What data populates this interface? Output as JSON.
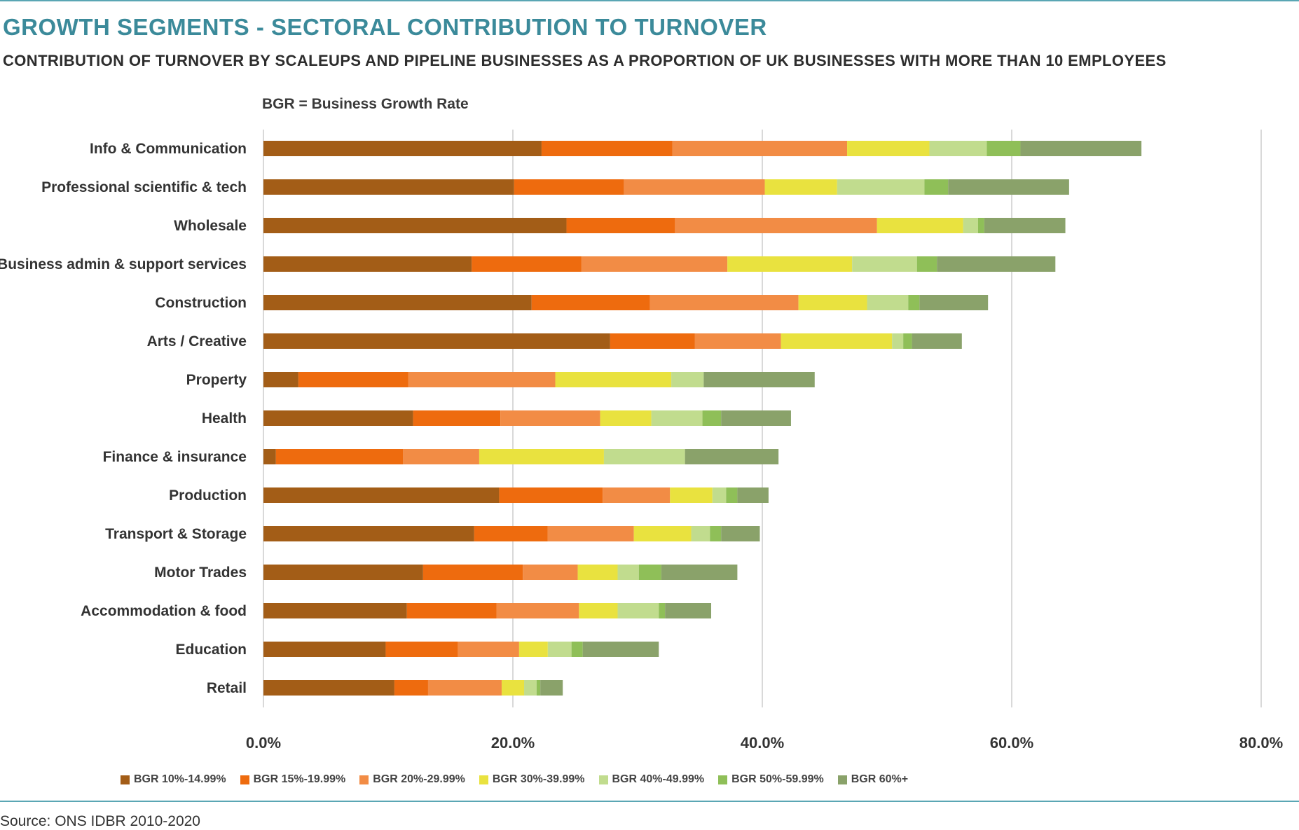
{
  "header": {
    "title": "GROWTH SEGMENTS - SECTORAL CONTRIBUTION TO TURNOVER",
    "subtitle": "CONTRIBUTION OF TURNOVER BY SCALEUPS AND PIPELINE BUSINESSES AS A PROPORTION OF UK BUSINESSES WITH MORE THAN 10 EMPLOYEES",
    "note": "BGR = Business Growth Rate"
  },
  "source": "Source: ONS IDBR 2010-2020",
  "chart_data": {
    "type": "bar",
    "orientation": "horizontal",
    "stacked": true,
    "xlim": [
      0,
      80
    ],
    "ticks": [
      "0.0%",
      "20.0%",
      "40.0%",
      "60.0%",
      "80.0%"
    ],
    "tick_values": [
      0,
      20,
      40,
      60,
      80
    ],
    "grid": true,
    "legend_position": "bottom",
    "categories": [
      "Info & Communication",
      "Professional scientific & tech",
      "Wholesale",
      "Business admin & support services",
      "Construction",
      "Arts / Creative",
      "Property",
      "Health",
      "Finance & insurance",
      "Production",
      "Transport & Storage",
      "Motor Trades",
      "Accommodation & food",
      "Education",
      "Retail"
    ],
    "series": [
      {
        "name": "BGR 10%-14.99%",
        "color": "#a35d17",
        "values": [
          22.3,
          20.1,
          24.3,
          16.7,
          21.5,
          27.8,
          2.8,
          12.0,
          1.0,
          18.9,
          16.9,
          12.8,
          11.5,
          9.8,
          10.5
        ]
      },
      {
        "name": "BGR 15%-19.99%",
        "color": "#ee6b0e",
        "values": [
          10.5,
          8.8,
          8.7,
          8.8,
          9.5,
          6.8,
          8.8,
          7.0,
          10.2,
          8.3,
          5.9,
          8.0,
          7.2,
          5.8,
          2.7
        ]
      },
      {
        "name": "BGR 20%-29.99%",
        "color": "#f28c45",
        "values": [
          14.0,
          11.3,
          16.2,
          11.7,
          11.9,
          6.9,
          11.8,
          8.0,
          6.1,
          5.4,
          6.9,
          4.4,
          6.6,
          4.9,
          5.9
        ]
      },
      {
        "name": "BGR 30%-39.99%",
        "color": "#e9e23f",
        "values": [
          6.6,
          5.8,
          6.9,
          10.0,
          5.5,
          8.9,
          9.3,
          4.1,
          10.0,
          3.4,
          4.6,
          3.2,
          3.1,
          2.3,
          1.8
        ]
      },
      {
        "name": "BGR 40%-49.99%",
        "color": "#c1dc8e",
        "values": [
          4.6,
          7.0,
          1.2,
          5.2,
          3.3,
          0.9,
          2.6,
          4.1,
          6.5,
          1.1,
          1.5,
          1.7,
          3.3,
          1.9,
          1.0
        ]
      },
      {
        "name": "BGR 50%-59.99%",
        "color": "#8fbf58",
        "values": [
          2.7,
          1.9,
          0.5,
          1.6,
          0.9,
          0.7,
          0.0,
          1.5,
          0.0,
          0.9,
          0.9,
          1.8,
          0.5,
          0.9,
          0.3
        ]
      },
      {
        "name": "BGR 60%+",
        "color": "#8aa26a",
        "values": [
          9.7,
          9.7,
          6.5,
          9.5,
          5.5,
          4.0,
          8.9,
          5.6,
          7.5,
          2.5,
          3.1,
          6.1,
          3.7,
          6.1,
          1.8
        ]
      }
    ]
  }
}
